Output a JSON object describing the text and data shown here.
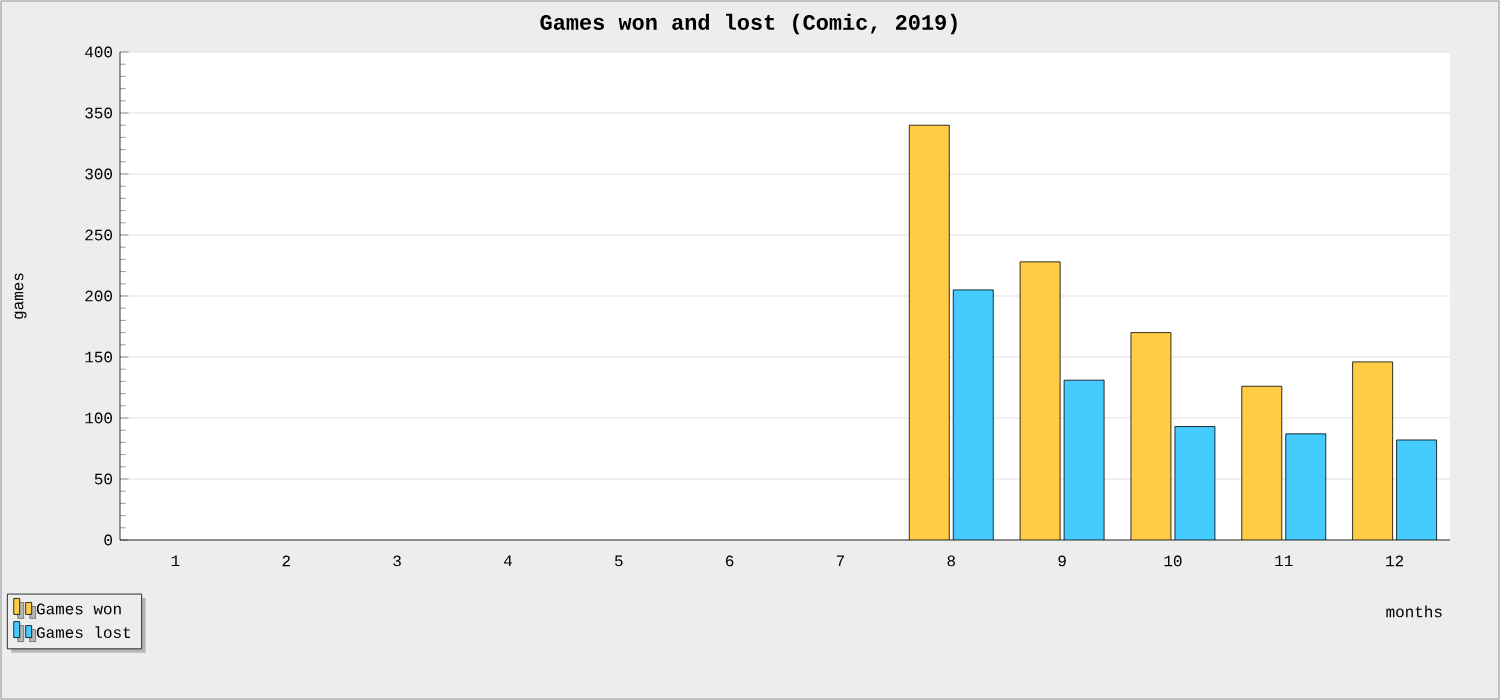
{
  "chart_data": {
    "type": "bar",
    "title": "Games won and lost (Comic, 2019)",
    "xlabel": "months",
    "ylabel": "games",
    "categories": [
      "1",
      "2",
      "3",
      "4",
      "5",
      "6",
      "7",
      "8",
      "9",
      "10",
      "11",
      "12"
    ],
    "series": [
      {
        "name": "Games won",
        "color": "#ffcc44",
        "values": [
          null,
          null,
          null,
          null,
          null,
          null,
          null,
          340,
          228,
          170,
          126,
          146
        ]
      },
      {
        "name": "Games lost",
        "color": "#44ccff",
        "values": [
          null,
          null,
          null,
          null,
          null,
          null,
          null,
          205,
          131,
          93,
          87,
          82
        ]
      }
    ],
    "ylim": [
      0,
      400
    ],
    "yticks": [
      0,
      50,
      100,
      150,
      200,
      250,
      300,
      350,
      400
    ],
    "grid": "y",
    "legend": "bottom left"
  }
}
